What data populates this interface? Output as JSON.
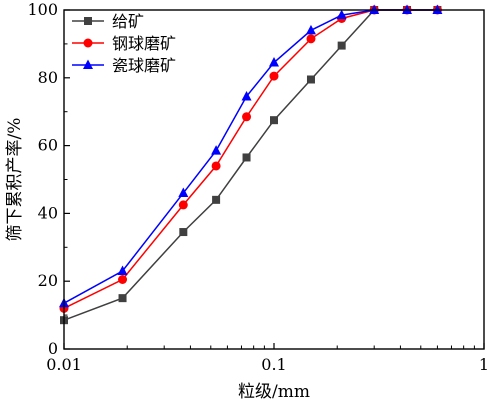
{
  "chart_data": {
    "type": "line",
    "xlabel": "粒级/mm",
    "ylabel": "筛下累积产率/%",
    "x_scale": "log",
    "xlim": [
      0.01,
      1
    ],
    "ylim": [
      0,
      100
    ],
    "x_ticks": [
      0.01,
      0.1,
      1
    ],
    "x_tick_labels": [
      "0.01",
      "0.1",
      "1"
    ],
    "y_ticks": [
      0,
      20,
      40,
      60,
      80,
      100
    ],
    "y_tick_labels": [
      "0",
      "20",
      "40",
      "60",
      "80",
      "100"
    ],
    "grid": false,
    "legend_position": "top-left",
    "series": [
      {
        "name": "给矿",
        "color": "#404040",
        "marker": "square",
        "x": [
          0.01,
          0.019,
          0.037,
          0.053,
          0.074,
          0.1,
          0.15,
          0.21,
          0.3,
          0.43,
          0.6
        ],
        "y": [
          8.5,
          15.0,
          34.5,
          44.0,
          56.5,
          67.5,
          79.5,
          89.5,
          100,
          100,
          100
        ]
      },
      {
        "name": "钢球磨矿",
        "color": "#ff0000",
        "marker": "circle",
        "x": [
          0.01,
          0.019,
          0.037,
          0.053,
          0.074,
          0.1,
          0.15,
          0.21,
          0.3,
          0.43,
          0.6
        ],
        "y": [
          12.0,
          20.5,
          42.5,
          54.0,
          68.5,
          80.5,
          91.5,
          97.5,
          100,
          100,
          100
        ]
      },
      {
        "name": "瓷球磨矿",
        "color": "#0000ff",
        "marker": "triangle",
        "x": [
          0.01,
          0.019,
          0.037,
          0.053,
          0.074,
          0.1,
          0.15,
          0.21,
          0.3,
          0.43,
          0.6
        ],
        "y": [
          13.5,
          23.0,
          46.0,
          58.5,
          74.5,
          84.5,
          94.0,
          98.5,
          100,
          100,
          100
        ]
      }
    ]
  }
}
